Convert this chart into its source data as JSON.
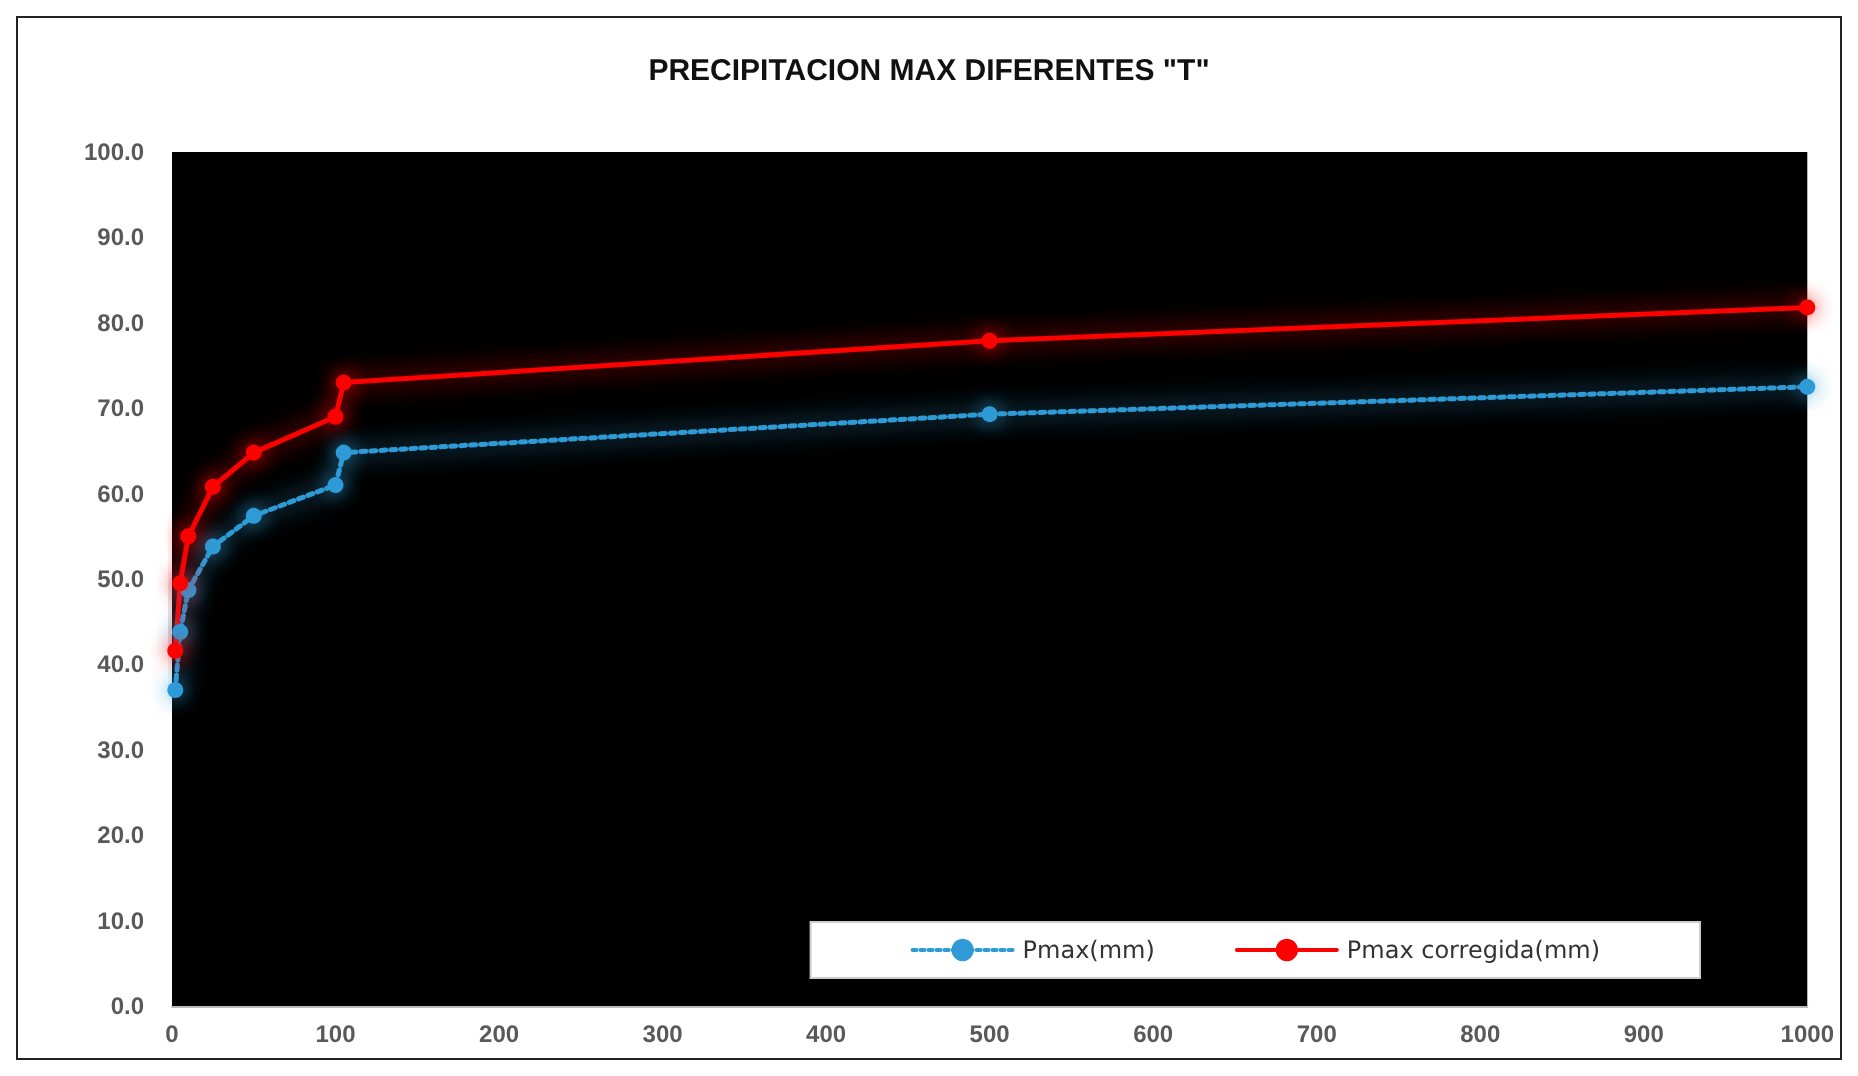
{
  "chart_data": {
    "type": "line",
    "title": "PRECIPITACION MAX DIFERENTES \"T\"",
    "x": [
      2,
      5,
      10,
      25,
      50,
      100,
      105,
      500,
      1000
    ],
    "series": [
      {
        "name": "Pmax(mm)",
        "color": "#2e9bd6",
        "line_style": "dotted",
        "values": [
          37,
          43.8,
          48.7,
          53.8,
          57.4,
          61,
          64.8,
          69.3,
          72.5
        ]
      },
      {
        "name": "Pmax corregida(mm)",
        "color": "#ff0000",
        "line_style": "solid",
        "values": [
          41.6,
          49.5,
          55,
          60.8,
          64.8,
          69,
          73,
          77.9,
          81.8
        ]
      }
    ],
    "xlim": [
      0,
      1000
    ],
    "xticks": [
      0,
      100,
      200,
      300,
      400,
      500,
      600,
      700,
      800,
      900,
      1000
    ],
    "ylim": [
      0,
      100
    ],
    "yticks": [
      {
        "value": 0,
        "label": "0.0"
      },
      {
        "value": 10,
        "label": "10.0"
      },
      {
        "value": 20,
        "label": "20.0"
      },
      {
        "value": 30,
        "label": "30.0"
      },
      {
        "value": 40,
        "label": "40.0"
      },
      {
        "value": 50,
        "label": "50.0"
      },
      {
        "value": 60,
        "label": "60.0"
      },
      {
        "value": 70,
        "label": "70.0"
      },
      {
        "value": 80,
        "label": "80.0"
      },
      {
        "value": 90,
        "label": "90.0"
      },
      {
        "value": 100,
        "label": "100.0"
      }
    ],
    "grid": false,
    "legend": "bottom right",
    "marker": "circle"
  }
}
